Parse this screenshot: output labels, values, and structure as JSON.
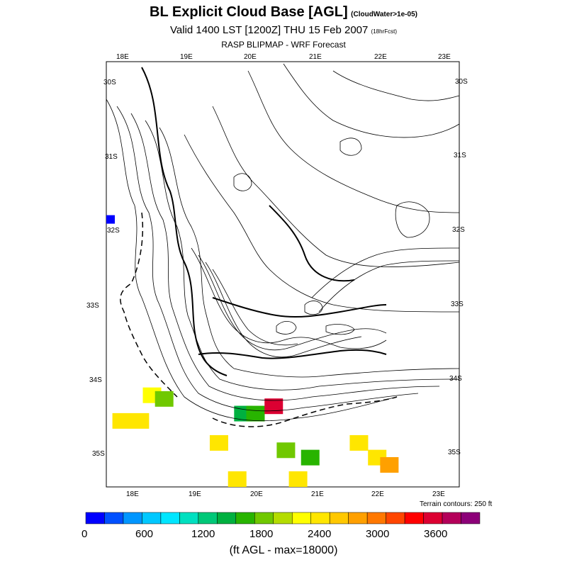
{
  "title": {
    "main": "BL Explicit Cloud Base [AGL]",
    "main_note": "(CloudWater>1e-05)",
    "valid": "Valid 1400 LST [1200Z] THU 15 Feb 2007",
    "valid_note": "(18hrFcst)",
    "source": "RASP BLIPMAP - WRF Forecast"
  },
  "axes": {
    "lon_top": [
      "18E",
      "19E",
      "20E",
      "21E",
      "22E",
      "23E"
    ],
    "lon_bottom": [
      "18E",
      "19E",
      "20E",
      "21E",
      "22E",
      "23E"
    ],
    "lat_left": [
      "30S",
      "31S",
      "32S",
      "33S",
      "34S",
      "35S"
    ],
    "lat_right": [
      "30S",
      "31S",
      "32S",
      "33S",
      "34S",
      "35S"
    ]
  },
  "terrain_note": "Terrain contours: 250 ft",
  "colorbar": {
    "tick_labels": [
      "0",
      "600",
      "1200",
      "1800",
      "2400",
      "3000",
      "3600"
    ],
    "label": "(ft AGL - max=18000)",
    "colors": [
      "#0000ff",
      "#0050ff",
      "#0096ff",
      "#00c8ff",
      "#00e6ff",
      "#00e0c0",
      "#00c878",
      "#00b040",
      "#28b400",
      "#70c800",
      "#b4dc00",
      "#ffff00",
      "#ffe600",
      "#ffc800",
      "#ffa000",
      "#ff7800",
      "#ff4600",
      "#ff0000",
      "#dc0032",
      "#b4005a",
      "#8c0078"
    ]
  },
  "chart_data": {
    "type": "heatmap",
    "title": "BL Explicit Cloud Base [AGL]",
    "units": "ft AGL",
    "value_range": [
      0,
      3900
    ],
    "max_value": 18000,
    "lon_range_deg_E": [
      17.5,
      23.3
    ],
    "lat_range_deg_S": [
      29.8,
      35.6
    ],
    "cells": [
      {
        "lon": 17.5,
        "lat": 32.0,
        "value": 0
      },
      {
        "lon": 18.1,
        "lat": 34.35,
        "value": 2200
      },
      {
        "lon": 18.3,
        "lat": 34.4,
        "value": 1700
      },
      {
        "lon": 17.6,
        "lat": 34.7,
        "value": 2300
      },
      {
        "lon": 17.9,
        "lat": 34.7,
        "value": 2300
      },
      {
        "lon": 19.6,
        "lat": 34.6,
        "value": 1400
      },
      {
        "lon": 19.8,
        "lat": 34.6,
        "value": 1550
      },
      {
        "lon": 20.1,
        "lat": 34.5,
        "value": 3400
      },
      {
        "lon": 19.2,
        "lat": 35.0,
        "value": 2300
      },
      {
        "lon": 20.3,
        "lat": 35.1,
        "value": 1700
      },
      {
        "lon": 20.7,
        "lat": 35.2,
        "value": 1600
      },
      {
        "lon": 19.5,
        "lat": 35.5,
        "value": 2300
      },
      {
        "lon": 20.5,
        "lat": 35.5,
        "value": 2300
      },
      {
        "lon": 21.5,
        "lat": 35.0,
        "value": 2300
      },
      {
        "lon": 21.8,
        "lat": 35.2,
        "value": 2400
      },
      {
        "lon": 22.0,
        "lat": 35.3,
        "value": 2600
      }
    ]
  }
}
